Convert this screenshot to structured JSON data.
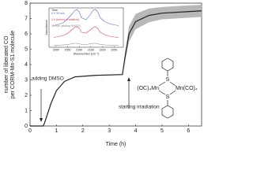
{
  "chart_data": [
    {
      "type": "line",
      "xlabel": "Time (h)",
      "ylabel": [
        "number of liberated CO",
        "per CORM-Mn-S1 molecule"
      ],
      "xlim": [
        0,
        6.5
      ],
      "xticks": [
        0,
        1,
        2,
        3,
        4,
        5,
        6
      ],
      "ylim": [
        0,
        8
      ],
      "yticks": [
        0,
        1,
        2,
        3,
        4,
        5,
        6,
        7,
        8
      ],
      "series": [
        {
          "color": "#222222",
          "band_color": "#b8b8b8",
          "x": [
            0,
            0.5,
            0.55,
            0.8,
            1.0,
            1.3,
            1.7,
            2.5,
            3.5,
            3.6,
            3.75,
            4.0,
            4.5,
            5.0,
            6.0,
            6.5
          ],
          "values": [
            0,
            0,
            0.2,
            1.5,
            2.3,
            2.9,
            3.2,
            3.3,
            3.35,
            4.5,
            6.0,
            6.8,
            7.2,
            7.35,
            7.45,
            7.5
          ],
          "errors": [
            0,
            0,
            0,
            0,
            0,
            0,
            0,
            0,
            0,
            0.3,
            0.5,
            0.5,
            0.45,
            0.4,
            0.4,
            0.4
          ]
        }
      ],
      "annotations": [
        "adding DMSO",
        "starting irradiation"
      ]
    },
    {
      "type": "line",
      "xlabel": "Wavenumber (cm⁻¹)",
      "ylabel": "Absorbance",
      "xlim": [
        1970,
        2290
      ],
      "xticks": [
        2000,
        2050,
        2100,
        2150,
        2200,
        2250
      ],
      "ylim": [
        0,
        1
      ],
      "legend_title": "Time",
      "x": [
        1990,
        2010,
        2030,
        2050,
        2070,
        2080,
        2090,
        2100,
        2110,
        2130,
        2150,
        2160,
        2170,
        2180,
        2190,
        2210,
        2230,
        2250,
        2270
      ],
      "series": [
        {
          "name": "4 h 30 min",
          "color": "#5566cc",
          "values": [
            0.55,
            0.58,
            0.62,
            0.72,
            0.85,
            0.93,
            0.96,
            0.9,
            0.75,
            0.7,
            0.85,
            0.94,
            0.96,
            0.9,
            0.75,
            0.65,
            0.6,
            0.57,
            0.55
          ]
        },
        {
          "name": "3 h (before irradiation)",
          "color": "#dd4455",
          "values": [
            0.25,
            0.27,
            0.3,
            0.35,
            0.45,
            0.5,
            0.52,
            0.48,
            0.38,
            0.36,
            0.45,
            0.5,
            0.52,
            0.48,
            0.38,
            0.32,
            0.28,
            0.26,
            0.25
          ]
        },
        {
          "name": "30 min (adding DMSO)",
          "color": "#888888",
          "values": [
            0.05,
            0.05,
            0.06,
            0.07,
            0.09,
            0.1,
            0.1,
            0.09,
            0.07,
            0.07,
            0.09,
            0.1,
            0.1,
            0.09,
            0.07,
            0.06,
            0.05,
            0.05,
            0.05
          ]
        }
      ]
    }
  ],
  "structure": {
    "left": "(OC)₄Mn",
    "right": "Mn(CO)₄",
    "s_top": "S",
    "s_bottom": "S"
  }
}
